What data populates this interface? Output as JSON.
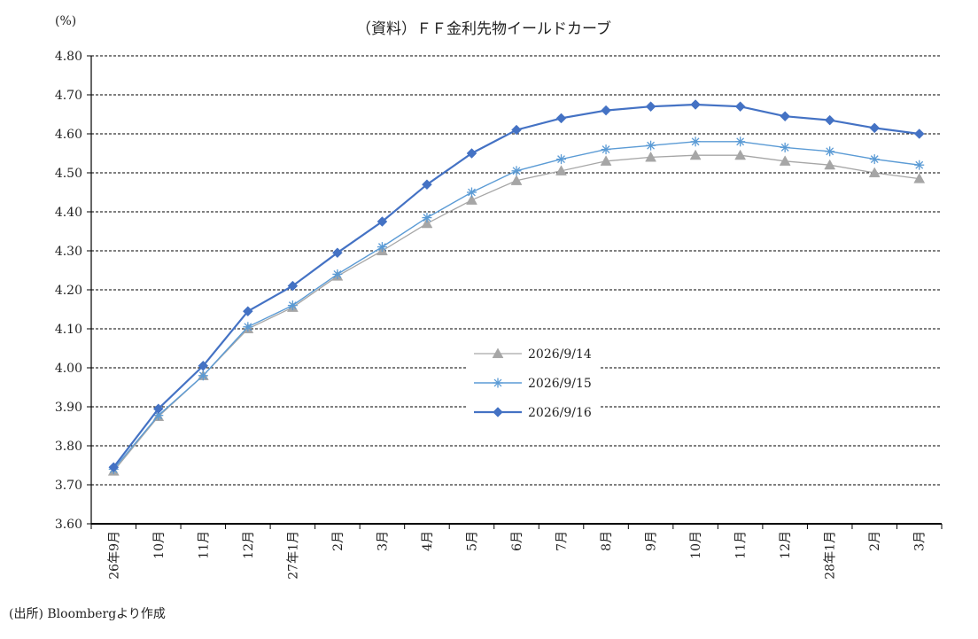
{
  "chart_data": {
    "type": "line",
    "title": "（資料）ＦＦ金利先物イールドカーブ",
    "ylabel": "(%)",
    "xlabel": "",
    "ylim": [
      3.6,
      4.8
    ],
    "yticks": [
      "3.60",
      "3.70",
      "3.80",
      "3.90",
      "4.00",
      "4.10",
      "4.20",
      "4.30",
      "4.40",
      "4.50",
      "4.60",
      "4.70",
      "4.80"
    ],
    "grid": true,
    "legend_position": "center",
    "categories": [
      "26年9月",
      "10月",
      "11月",
      "12月",
      "27年1月",
      "2月",
      "3月",
      "4月",
      "5月",
      "6月",
      "7月",
      "8月",
      "9月",
      "10月",
      "11月",
      "12月",
      "28年1月",
      "2月",
      "3月"
    ],
    "series": [
      {
        "name": "2026/9/14",
        "color": "#a6a6a6",
        "marker": "triangle",
        "values": [
          3.735,
          3.875,
          3.98,
          4.1,
          4.155,
          4.235,
          4.3,
          4.37,
          4.43,
          4.48,
          4.505,
          4.53,
          4.54,
          4.545,
          4.545,
          4.53,
          4.52,
          4.5,
          4.485
        ]
      },
      {
        "name": "2026/9/15",
        "color": "#5b9bd5",
        "marker": "star",
        "values": [
          3.74,
          3.878,
          3.98,
          4.105,
          4.16,
          4.24,
          4.31,
          4.385,
          4.45,
          4.505,
          4.535,
          4.56,
          4.57,
          4.58,
          4.58,
          4.565,
          4.555,
          4.535,
          4.52
        ]
      },
      {
        "name": "2026/9/16",
        "color": "#4472c4",
        "marker": "diamond",
        "values": [
          3.745,
          3.895,
          4.005,
          4.145,
          4.21,
          4.295,
          4.375,
          4.47,
          4.55,
          4.61,
          4.64,
          4.66,
          4.67,
          4.675,
          4.67,
          4.645,
          4.635,
          4.615,
          4.6
        ]
      }
    ]
  },
  "source_note": "(出所) Bloombergより作成"
}
